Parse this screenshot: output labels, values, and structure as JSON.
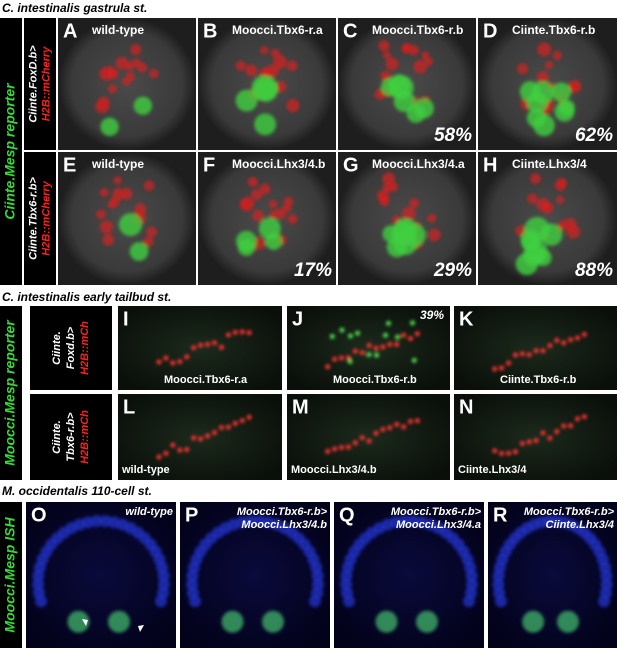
{
  "sections": [
    {
      "title": "C. intestinalis gastrula st.",
      "side_label": "Ciinte.Mesp reporter",
      "rows": [
        {
          "label_lines": [
            "Ciinte.FoxD.b>",
            "H2B::mCherry"
          ],
          "panels": [
            {
              "letter": "A",
              "label": [
                "wild-type"
              ]
            },
            {
              "letter": "B",
              "label": [
                "Moocci.Tbx6-r.a"
              ]
            },
            {
              "letter": "C",
              "label": [
                "Moocci.Tbx6-r.b"
              ],
              "percent": "58%"
            },
            {
              "letter": "D",
              "label": [
                "Ciinte.Tbx6-r.b"
              ],
              "percent": "62%"
            }
          ]
        },
        {
          "label_lines": [
            "Ciinte.Tbx6-r.b>",
            "H2B::mCherry"
          ],
          "panels": [
            {
              "letter": "E",
              "label": [
                "wild-type"
              ]
            },
            {
              "letter": "F",
              "label": [
                "Moocci.Lhx3/4.b"
              ],
              "percent": "17%"
            },
            {
              "letter": "G",
              "label": [
                "Moocci.Lhx3/4.a"
              ],
              "percent": "29%"
            },
            {
              "letter": "H",
              "label": [
                "Ciinte.Lhx3/4"
              ],
              "percent": "88%"
            }
          ]
        }
      ]
    },
    {
      "title": "C. intestinalis early tailbud st.",
      "side_label": "Moocci.Mesp reporter",
      "rows": [
        {
          "label_lines": [
            "Ciinte.",
            "Foxd.b>",
            "H2B::mCh"
          ],
          "panels": [
            {
              "letter": "I",
              "label": [
                "Moocci.Tbx6-r.a"
              ]
            },
            {
              "letter": "J",
              "label": [
                "Moocci.Tbx6-r.b"
              ],
              "percent": "39%"
            },
            {
              "letter": "K",
              "label": [
                "Ciinte.Tbx6-r.b"
              ]
            }
          ]
        },
        {
          "label_lines": [
            "Ciinte.",
            "Tbx6-r.b>",
            "H2B::mCh"
          ],
          "panels": [
            {
              "letter": "L",
              "label": [
                "wild-type"
              ]
            },
            {
              "letter": "M",
              "label": [
                "Moocci.Lhx3/4.b"
              ]
            },
            {
              "letter": "N",
              "label": [
                "Ciinte.Lhx3/4"
              ]
            }
          ]
        }
      ]
    },
    {
      "title": "M. occidentalis 110-cell st.",
      "side_label": "Moocci.Mesp ISH",
      "rows": [
        {
          "panels": [
            {
              "letter": "O",
              "label": [
                "wild-type"
              ]
            },
            {
              "letter": "P",
              "label": [
                "Moocci.Tbx6-r.b>",
                "Moocci.Lhx3/4.b"
              ]
            },
            {
              "letter": "Q",
              "label": [
                "Moocci.Tbx6-r.b>",
                "Moocci.Lhx3/4.a"
              ]
            },
            {
              "letter": "R",
              "label": [
                "Moocci.Tbx6-r.b>",
                "Ciinte.Lhx3/4"
              ]
            }
          ]
        }
      ]
    }
  ]
}
